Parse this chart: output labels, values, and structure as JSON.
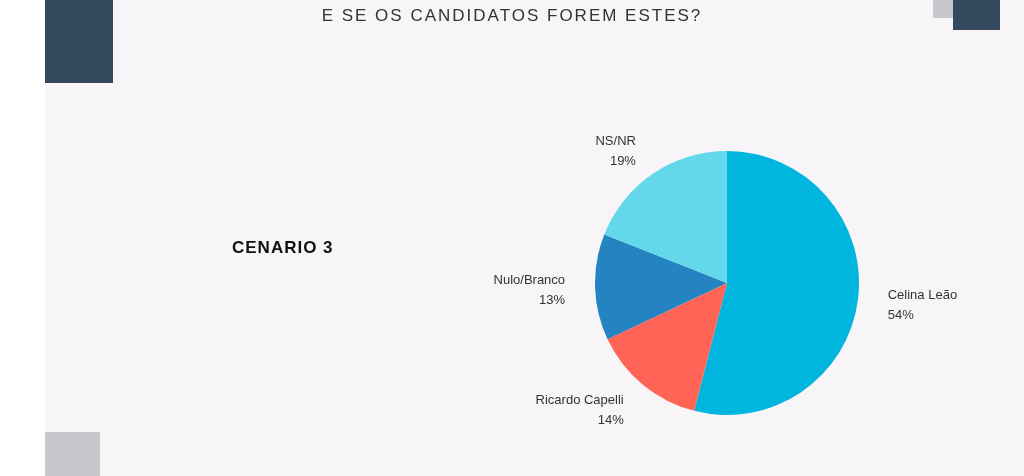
{
  "chart_data": {
    "type": "pie",
    "title": "E SE OS CANDIDATOS FOREM ESTES?",
    "subtitle": "CENARIO 3",
    "categories": [
      "Celina Leão",
      "Ricardo Capelli",
      "Nulo/Branco",
      "NS/NR"
    ],
    "values": [
      54,
      14,
      13,
      19
    ],
    "value_labels": [
      "54%",
      "14%",
      "13%",
      "19%"
    ],
    "colors": [
      "#00b5de",
      "#ff6457",
      "#2484c1",
      "#63d8eb"
    ],
    "legend": false
  }
}
